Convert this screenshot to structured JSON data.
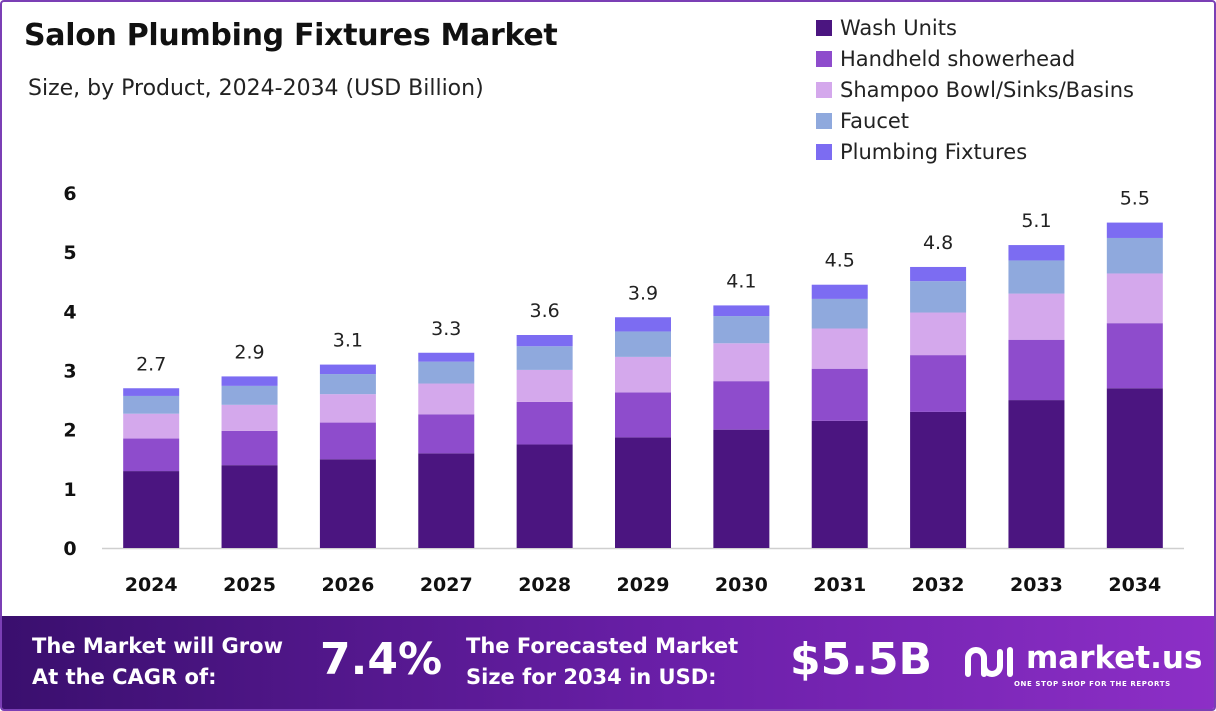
{
  "header": {
    "title": "Salon Plumbing Fixtures Market",
    "subtitle": "Size, by Product, 2024-2034 (USD Billion)"
  },
  "legend": [
    {
      "label": "Wash Units",
      "color": "#4b1580"
    },
    {
      "label": "Handheld showerhead",
      "color": "#8e4ccc"
    },
    {
      "label": "Shampoo Bowl/Sinks/Basins",
      "color": "#d4a8ec"
    },
    {
      "label": "Faucet",
      "color": "#8fa9dd"
    },
    {
      "label": "Plumbing Fixtures",
      "color": "#7c6cf2"
    }
  ],
  "chart_data": {
    "type": "bar",
    "stacked": true,
    "categories": [
      "2024",
      "2025",
      "2026",
      "2027",
      "2028",
      "2029",
      "2030",
      "2031",
      "2032",
      "2033",
      "2034"
    ],
    "series": [
      {
        "name": "Wash Units",
        "values": [
          1.3,
          1.4,
          1.5,
          1.6,
          1.75,
          1.87,
          2.0,
          2.15,
          2.3,
          2.5,
          2.7
        ]
      },
      {
        "name": "Handheld showerhead",
        "values": [
          0.55,
          0.58,
          0.62,
          0.66,
          0.72,
          0.76,
          0.82,
          0.88,
          0.96,
          1.02,
          1.1
        ]
      },
      {
        "name": "Shampoo Bowl/Sinks/Basins",
        "values": [
          0.42,
          0.44,
          0.48,
          0.52,
          0.54,
          0.6,
          0.64,
          0.68,
          0.72,
          0.78,
          0.84
        ]
      },
      {
        "name": "Faucet",
        "values": [
          0.3,
          0.32,
          0.34,
          0.37,
          0.4,
          0.43,
          0.46,
          0.5,
          0.53,
          0.56,
          0.6
        ]
      },
      {
        "name": "Plumbing Fixtures",
        "values": [
          0.13,
          0.16,
          0.16,
          0.15,
          0.19,
          0.24,
          0.18,
          0.24,
          0.24,
          0.26,
          0.26
        ]
      }
    ],
    "totals": [
      "2.7",
      "2.9",
      "3.1",
      "3.3",
      "3.6",
      "3.9",
      "4.1",
      "4.5",
      "4.8",
      "5.1",
      "5.5"
    ],
    "yticks": [
      "0",
      "1",
      "2",
      "3",
      "4",
      "5",
      "6"
    ],
    "ylim": [
      0,
      6
    ],
    "grid": false,
    "legend_position": "top-right"
  },
  "footer": {
    "cagr_label_line1": "The Market will Grow",
    "cagr_label_line2": "At the CAGR of:",
    "cagr_value": "7.4%",
    "forecast_label_line1": "The Forecasted Market",
    "forecast_label_line2": "Size for 2034 in USD:",
    "forecast_value": "$5.5B",
    "brand_name": "market.us",
    "brand_tagline": "ONE STOP SHOP FOR THE REPORTS"
  }
}
